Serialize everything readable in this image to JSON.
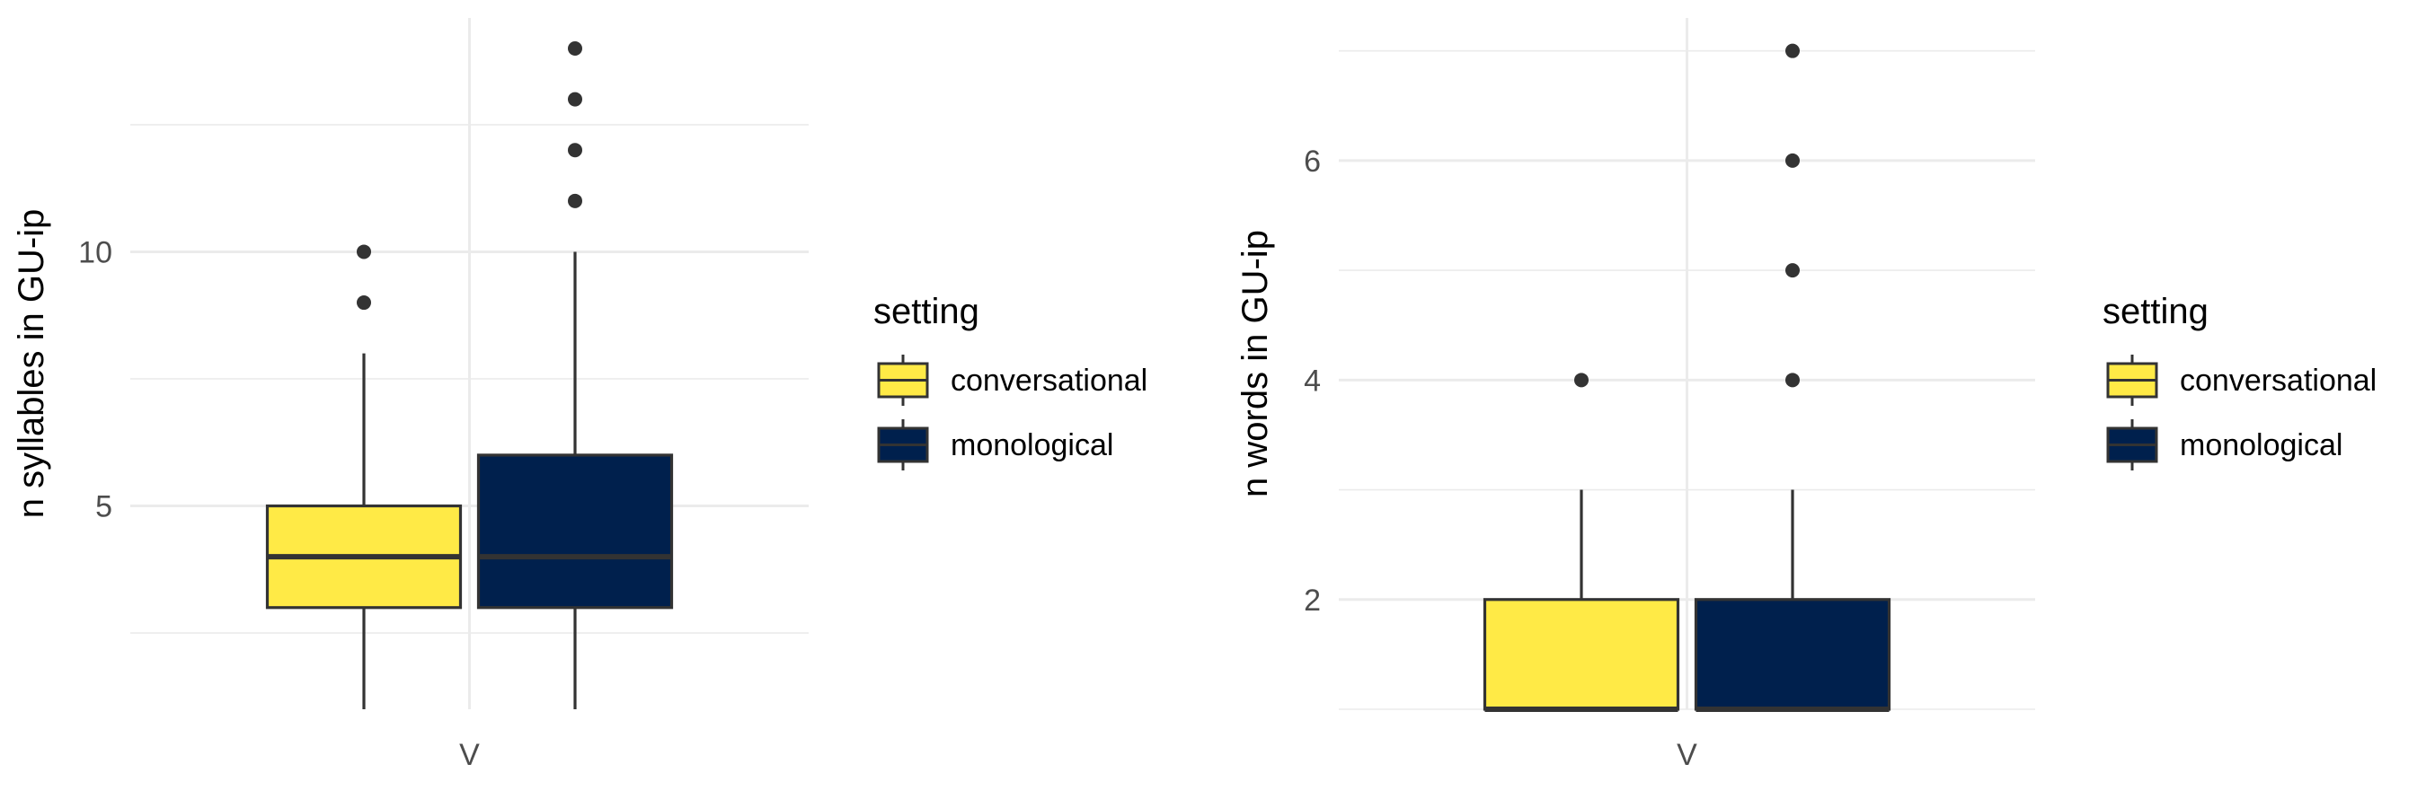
{
  "colors": {
    "conversational": "#FFEA46",
    "monological": "#00204D",
    "outline": "#333333",
    "grid": "#EBEBEB",
    "point": "#333333"
  },
  "legend": {
    "title": "setting",
    "items": [
      "conversational",
      "monological"
    ]
  },
  "chart_data": [
    {
      "type": "boxplot",
      "ylabel": "n syllables in GU-ip",
      "xlabel": "",
      "categories": [
        "V"
      ],
      "ylim": [
        1,
        14.6
      ],
      "yticks": [
        5,
        10
      ],
      "grid": true,
      "legend_position": "right",
      "series": [
        {
          "name": "conversational",
          "min": 1,
          "q1": 3,
          "median": 4,
          "q3": 5,
          "max": 8,
          "outliers": [
            9,
            10
          ]
        },
        {
          "name": "monological",
          "min": 1,
          "q1": 3,
          "median": 4,
          "q3": 6,
          "max": 10,
          "outliers": [
            11,
            12,
            13,
            14
          ]
        }
      ]
    },
    {
      "type": "boxplot",
      "ylabel": "n words in GU-ip",
      "xlabel": "",
      "categories": [
        "V"
      ],
      "ylim": [
        1,
        7.3
      ],
      "yticks": [
        2,
        4,
        6
      ],
      "grid": true,
      "legend_position": "right",
      "series": [
        {
          "name": "conversational",
          "min": 1,
          "q1": 1,
          "median": 1,
          "q3": 2,
          "max": 3,
          "outliers": [
            4
          ]
        },
        {
          "name": "monological",
          "min": 1,
          "q1": 1,
          "median": 1,
          "q3": 2,
          "max": 3,
          "outliers": [
            4,
            5,
            6,
            7
          ]
        }
      ]
    }
  ]
}
